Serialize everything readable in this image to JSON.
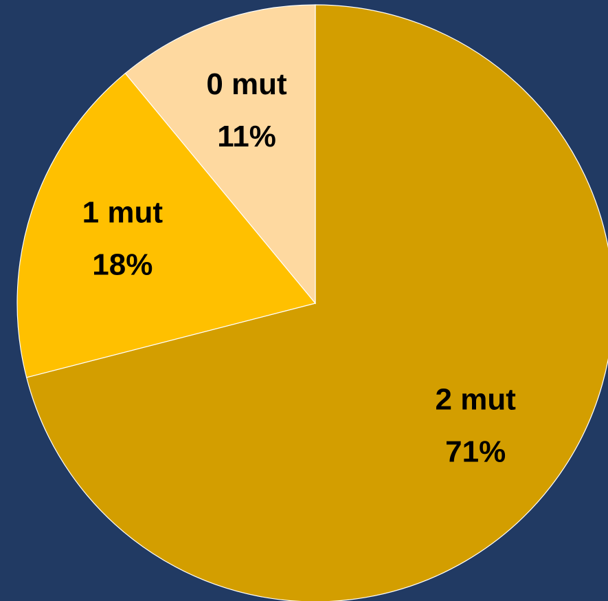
{
  "chart_data": {
    "type": "pie",
    "categories": [
      "2 mut",
      "1 mut",
      "0 mut"
    ],
    "values": [
      71,
      18,
      11
    ],
    "value_labels": [
      "71%",
      "18%",
      "11%"
    ],
    "colors": [
      "#d39e00",
      "#ffc000",
      "#fed9a0"
    ],
    "start_angle": 0,
    "direction": "clockwise"
  }
}
